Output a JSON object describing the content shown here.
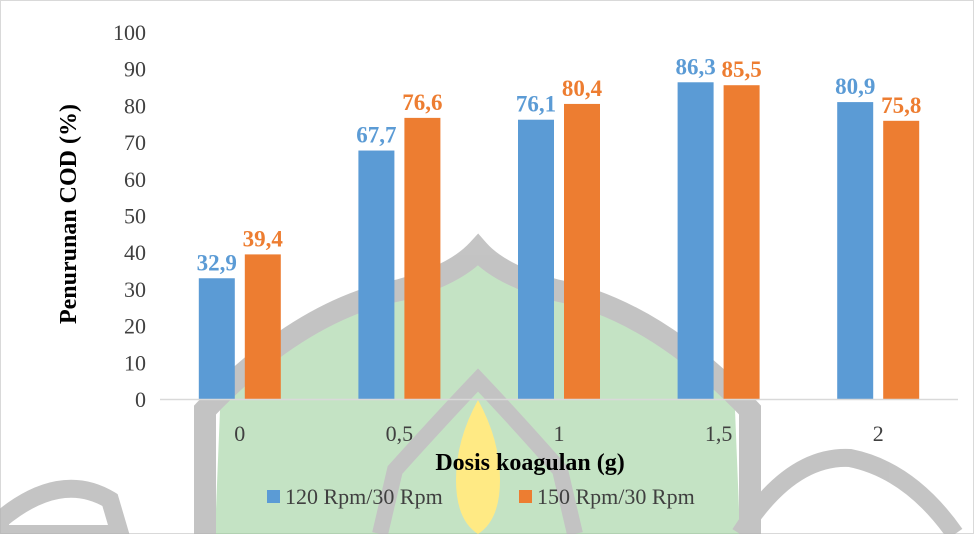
{
  "colors": {
    "series_1": "#5b9bd5",
    "series_2": "#ed7d31",
    "grid": "#d9d9d9",
    "axis": "#d9d9d9",
    "watermark_green": "#8fc98f",
    "watermark_gray": "#b0b0b0",
    "watermark_yellow": "#ffe45c"
  },
  "chart_data": {
    "type": "bar",
    "title": "",
    "xlabel": "Dosis koagulan (g)",
    "ylabel": "Penurunan COD (%)",
    "categories": [
      "0",
      "0,5",
      "1",
      "1,5",
      "2"
    ],
    "ylim": [
      0,
      100
    ],
    "yticks": [
      "0",
      "10",
      "20",
      "30",
      "40",
      "50",
      "60",
      "70",
      "80",
      "90",
      "100"
    ],
    "grid": false,
    "legend_position": "bottom",
    "series": [
      {
        "name": "120 Rpm/30 Rpm",
        "values": [
          32.9,
          67.7,
          76.1,
          86.3,
          80.9
        ],
        "labels": [
          "32,9",
          "67,7",
          "76,1",
          "86,3",
          "80,9"
        ]
      },
      {
        "name": "150 Rpm/30 Rpm",
        "values": [
          39.4,
          76.6,
          80.4,
          85.5,
          75.8
        ],
        "labels": [
          "39,4",
          "76,6",
          "80,4",
          "85,5",
          "75,8"
        ]
      }
    ]
  }
}
